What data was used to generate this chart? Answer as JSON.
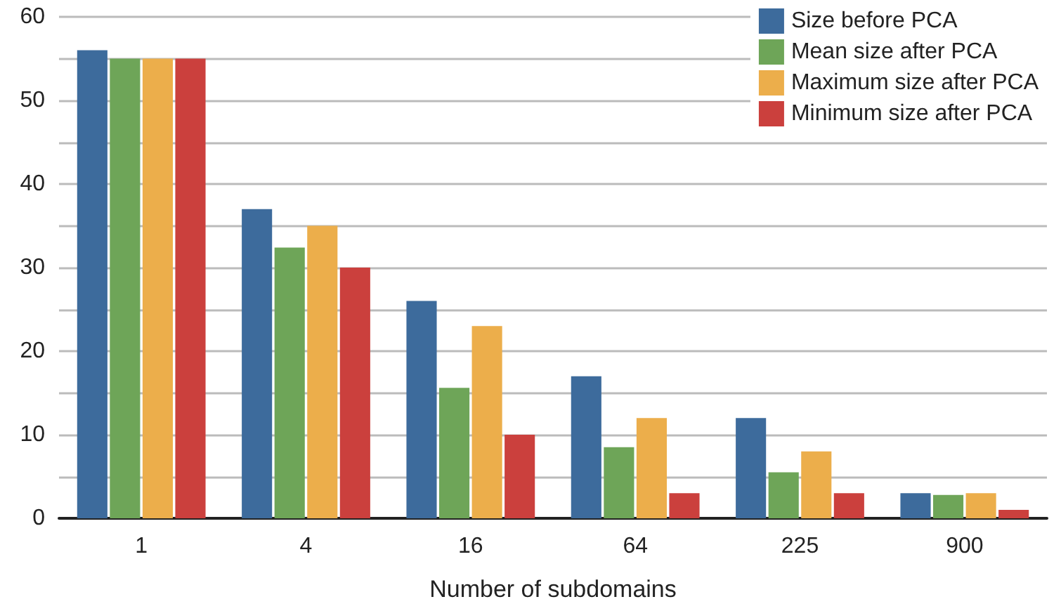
{
  "chart_data": {
    "type": "bar",
    "xlabel": "Number of subdomains",
    "categories": [
      "1",
      "4",
      "16",
      "64",
      "225",
      "900"
    ],
    "series": [
      {
        "name": "Size before PCA",
        "color": "#3d6b9c",
        "values": [
          56,
          37,
          26,
          17,
          12,
          3
        ]
      },
      {
        "name": "Mean size after PCA",
        "color": "#6ea558",
        "values": [
          55,
          32.4,
          15.6,
          8.5,
          5.5,
          2.8
        ]
      },
      {
        "name": "Maximum size after PCA",
        "color": "#ecae4b",
        "values": [
          55,
          35,
          23,
          12,
          8,
          3
        ]
      },
      {
        "name": "Minimum size after PCA",
        "color": "#cb403d",
        "values": [
          55,
          30,
          10,
          3,
          3,
          1
        ]
      }
    ],
    "ylim": [
      0,
      60
    ],
    "yticks": [
      0,
      {
        "value": 5,
        "label": null
      },
      10,
      {
        "value": 15,
        "label": null
      },
      20,
      {
        "value": 25,
        "label": null
      },
      30,
      {
        "value": 35,
        "label": null
      },
      40,
      {
        "value": 45,
        "label": null
      },
      50,
      {
        "value": 55,
        "label": null
      },
      60
    ],
    "grid": "y",
    "legend": "top right"
  }
}
